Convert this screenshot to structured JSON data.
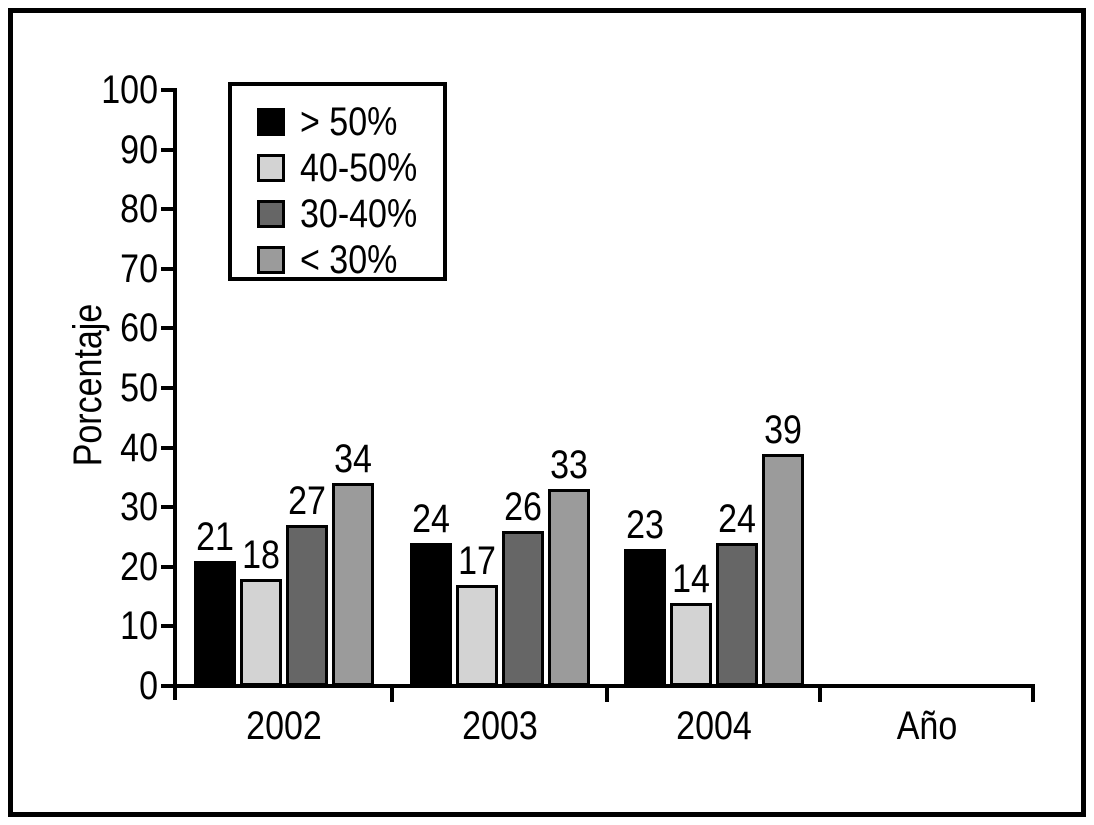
{
  "chart_data": {
    "type": "bar",
    "title": "",
    "ylabel": "Porcentaje",
    "xlabel": "Año",
    "categories": [
      "2002",
      "2003",
      "2004"
    ],
    "series": [
      {
        "name": "> 50%",
        "color": "#000000",
        "values": [
          21,
          24,
          23
        ]
      },
      {
        "name": "40-50%",
        "color": "#d3d3d3",
        "values": [
          18,
          17,
          14
        ]
      },
      {
        "name": "30-40%",
        "color": "#666666",
        "values": [
          27,
          26,
          24
        ]
      },
      {
        "name": "< 30%",
        "color": "#9b9b9b",
        "values": [
          34,
          33,
          39
        ]
      }
    ],
    "ylim": [
      0,
      100
    ],
    "yticks": [
      0,
      10,
      20,
      30,
      40,
      50,
      60,
      70,
      80,
      90,
      100
    ],
    "bar_value_labels": true,
    "legend_position": "top-left",
    "grid": false,
    "axis_color": "#000000",
    "background": "#ffffff"
  }
}
